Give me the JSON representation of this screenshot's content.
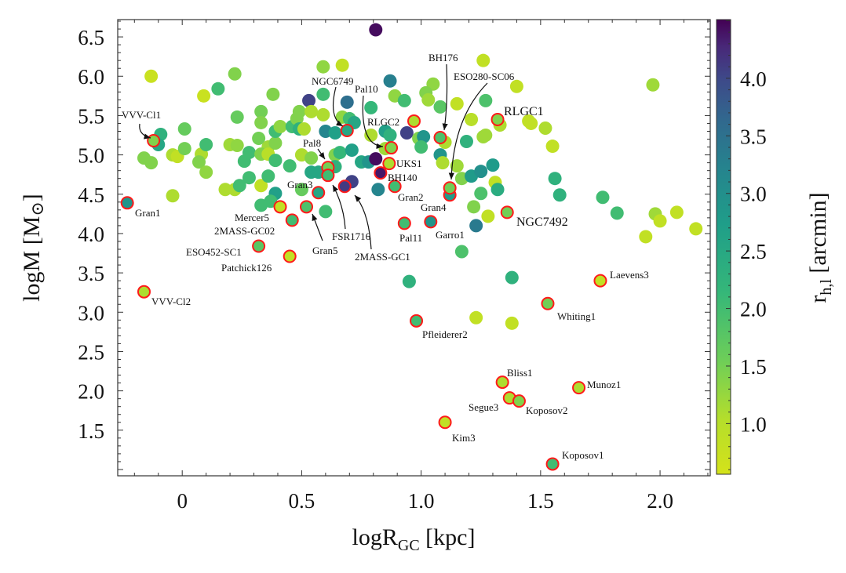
{
  "chart_data": {
    "type": "scatter",
    "title": "",
    "xlabel": "logR",
    "xlabel_sub": "GC",
    "xlabel_unit": " [kpc]",
    "ylabel": "logM [M",
    "ylabel_sym": "⊙",
    "ylabel_end": "]",
    "xlim": [
      -0.27,
      2.21
    ],
    "ylim": [
      0.92,
      6.72
    ],
    "xticks": [
      "0",
      "0.5",
      "1.0",
      "1.5",
      "2.0"
    ],
    "xtick_values": [
      0,
      0.5,
      1.0,
      1.5,
      2.0
    ],
    "yticks": [
      "1.5",
      "2.0",
      "2.5",
      "3.0",
      "3.5",
      "4.0",
      "4.5",
      "5.0",
      "5.5",
      "6.0",
      "6.5"
    ],
    "ytick_values": [
      1.5,
      2.0,
      2.5,
      3.0,
      3.5,
      4.0,
      4.5,
      5.0,
      5.5,
      6.0,
      6.5
    ],
    "colorbar": {
      "label": "r",
      "label_sub": "h,l",
      "label_unit": " [arcmin]",
      "range": [
        0.56,
        4.51
      ],
      "ticks": [
        "1.0",
        "1.5",
        "2.0",
        "2.5",
        "3.0",
        "3.5",
        "4.0"
      ],
      "tick_values": [
        1.0,
        1.5,
        2.0,
        2.5,
        3.0,
        3.5,
        4.0
      ],
      "colormap": "viridis_r"
    },
    "highlight_edge_color": "#ff1a1a",
    "grid": false,
    "labeled_points": [
      {
        "name": "VVV-Cl1",
        "x": -0.12,
        "y": 5.18,
        "rh": 1.3
      },
      {
        "name": "Gran1",
        "x": -0.23,
        "y": 4.39,
        "rh": 2.5
      },
      {
        "name": "VVV-Cl2",
        "x": -0.16,
        "y": 3.26,
        "rh": 1.0
      },
      {
        "name": "Mercer5",
        "x": 0.41,
        "y": 4.34,
        "rh": 0.8
      },
      {
        "name": "2MASS-GC02",
        "x": 0.46,
        "y": 4.17,
        "rh": 1.8
      },
      {
        "name": "Gran5",
        "x": 0.52,
        "y": 4.34,
        "rh": 1.7
      },
      {
        "name": "ESO452-SC1",
        "x": 0.32,
        "y": 3.84,
        "rh": 1.6
      },
      {
        "name": "Patchick126",
        "x": 0.45,
        "y": 3.71,
        "rh": 0.8
      },
      {
        "name": "Gran3",
        "x": 0.57,
        "y": 4.52,
        "rh": 2.2
      },
      {
        "name": "Pal8",
        "x": 0.61,
        "y": 4.84,
        "rh": 1.4
      },
      {
        "name": "FSR1716",
        "x": 0.61,
        "y": 4.74,
        "rh": 1.8
      },
      {
        "name": "2MASS-GC1",
        "x": 0.68,
        "y": 4.6,
        "rh": 3.9
      },
      {
        "name": "NGC6749",
        "x": 0.69,
        "y": 5.31,
        "rh": 2.2
      },
      {
        "name": "Pal10",
        "x": 0.875,
        "y": 5.09,
        "rh": 1.3
      },
      {
        "name": "RLGC2",
        "x": 0.97,
        "y": 5.43,
        "rh": 1.0
      },
      {
        "name": "UKS1",
        "x": 0.866,
        "y": 4.89,
        "rh": 1.0
      },
      {
        "name": "BH140",
        "x": 0.83,
        "y": 4.77,
        "rh": 4.3
      },
      {
        "name": "Gran2",
        "x": 0.89,
        "y": 4.6,
        "rh": 1.8
      },
      {
        "name": "Pal11",
        "x": 0.93,
        "y": 4.13,
        "rh": 1.8
      },
      {
        "name": "Garro1",
        "x": 1.04,
        "y": 4.15,
        "rh": 2.5
      },
      {
        "name": "Gran4",
        "x": 1.12,
        "y": 4.49,
        "rh": 2.4
      },
      {
        "name": "ESO280-SC06",
        "x": 1.12,
        "y": 4.58,
        "rh": 1.4
      },
      {
        "name": "BH176",
        "x": 1.08,
        "y": 5.22,
        "rh": 1.7
      },
      {
        "name": "RLGC1",
        "x": 1.32,
        "y": 5.45,
        "rh": 1.3
      },
      {
        "name": "NGC7492",
        "x": 1.36,
        "y": 4.27,
        "rh": 1.4
      },
      {
        "name": "Laevens3",
        "x": 1.75,
        "y": 3.4,
        "rh": 0.8
      },
      {
        "name": "Whiting1",
        "x": 1.53,
        "y": 3.11,
        "rh": 1.4
      },
      {
        "name": "Pfleiderer2",
        "x": 0.98,
        "y": 2.89,
        "rh": 1.8
      },
      {
        "name": "Bliss1",
        "x": 1.34,
        "y": 2.11,
        "rh": 1.0
      },
      {
        "name": "Munoz1",
        "x": 1.66,
        "y": 2.04,
        "rh": 1.0
      },
      {
        "name": "Segue3",
        "x": 1.37,
        "y": 1.91,
        "rh": 1.0
      },
      {
        "name": "Koposov2",
        "x": 1.41,
        "y": 1.87,
        "rh": 1.3
      },
      {
        "name": "Kim3",
        "x": 1.1,
        "y": 1.6,
        "rh": 0.8
      },
      {
        "name": "Koposov1",
        "x": 1.55,
        "y": 1.07,
        "rh": 1.8
      }
    ],
    "points": [
      [
        0.81,
        6.59,
        4.4
      ],
      [
        -0.13,
        6.0,
        0.7
      ],
      [
        0.22,
        6.03,
        1.3
      ],
      [
        0.15,
        5.84,
        1.8
      ],
      [
        0.09,
        5.75,
        0.7
      ],
      [
        0.38,
        5.77,
        1.3
      ],
      [
        0.59,
        6.12,
        1.2
      ],
      [
        0.67,
        6.14,
        0.8
      ],
      [
        0.87,
        5.94,
        2.9
      ],
      [
        0.53,
        5.69,
        3.8
      ],
      [
        0.59,
        5.77,
        1.8
      ],
      [
        0.69,
        5.67,
        3.2
      ],
      [
        0.79,
        5.6,
        1.9
      ],
      [
        0.89,
        5.75,
        1.2
      ],
      [
        0.93,
        5.69,
        1.8
      ],
      [
        0.23,
        5.48,
        1.5
      ],
      [
        0.33,
        5.55,
        1.4
      ],
      [
        0.33,
        5.41,
        1.3
      ],
      [
        0.01,
        5.33,
        1.5
      ],
      [
        -0.09,
        5.26,
        2.0
      ],
      [
        -0.1,
        5.13,
        2.2
      ],
      [
        -0.16,
        4.96,
        1.3
      ],
      [
        -0.13,
        4.9,
        1.3
      ],
      [
        -0.04,
        5.0,
        1.0
      ],
      [
        -0.02,
        4.98,
        0.8
      ],
      [
        0.01,
        5.08,
        1.4
      ],
      [
        0.08,
        5.01,
        1.0
      ],
      [
        0.07,
        4.91,
        1.3
      ],
      [
        0.1,
        5.13,
        1.8
      ],
      [
        0.1,
        4.78,
        1.2
      ],
      [
        0.2,
        5.13,
        1.1
      ],
      [
        0.23,
        5.12,
        1.2
      ],
      [
        0.26,
        4.92,
        1.8
      ],
      [
        0.28,
        5.03,
        1.8
      ],
      [
        0.28,
        4.71,
        1.8
      ],
      [
        0.18,
        4.56,
        1.0
      ],
      [
        0.22,
        4.56,
        1.0
      ],
      [
        0.24,
        4.61,
        1.8
      ],
      [
        0.33,
        4.61,
        0.8
      ],
      [
        0.36,
        4.73,
        1.8
      ],
      [
        0.32,
        5.21,
        1.4
      ],
      [
        0.36,
        5.1,
        1.1
      ],
      [
        0.33,
        5.01,
        1.3
      ],
      [
        0.36,
        5.01,
        0.9
      ],
      [
        0.39,
        5.15,
        1.3
      ],
      [
        0.39,
        5.3,
        1.8
      ],
      [
        0.41,
        5.36,
        1.2
      ],
      [
        0.39,
        4.93,
        1.8
      ],
      [
        0.45,
        4.86,
        1.8
      ],
      [
        0.46,
        5.36,
        1.8
      ],
      [
        0.48,
        5.46,
        1.3
      ],
      [
        0.49,
        5.55,
        1.3
      ],
      [
        0.49,
        5.33,
        2.0
      ],
      [
        0.51,
        5.33,
        1.0
      ],
      [
        0.54,
        5.55,
        1.0
      ],
      [
        0.59,
        5.51,
        1.0
      ],
      [
        0.6,
        5.3,
        2.8
      ],
      [
        0.64,
        5.28,
        2.3
      ],
      [
        0.67,
        5.48,
        1.2
      ],
      [
        0.7,
        5.46,
        1.8
      ],
      [
        0.72,
        5.41,
        2.2
      ],
      [
        0.5,
        5.0,
        1.0
      ],
      [
        0.54,
        4.96,
        1.3
      ],
      [
        0.54,
        4.78,
        2.2
      ],
      [
        0.57,
        4.78,
        2.2
      ],
      [
        0.64,
        5.0,
        1.3
      ],
      [
        0.66,
        5.03,
        1.9
      ],
      [
        0.64,
        4.85,
        2.0
      ],
      [
        0.71,
        5.06,
        2.3
      ],
      [
        0.75,
        4.91,
        2.2
      ],
      [
        0.78,
        4.91,
        2.5
      ],
      [
        0.81,
        4.95,
        4.4
      ],
      [
        0.79,
        5.25,
        1.0
      ],
      [
        0.85,
        5.3,
        2.3
      ],
      [
        0.87,
        5.25,
        2.0
      ],
      [
        0.85,
        5.08,
        1.1
      ],
      [
        0.94,
        5.28,
        3.8
      ],
      [
        0.82,
        4.56,
        2.8
      ],
      [
        0.71,
        4.66,
        3.8
      ],
      [
        0.5,
        4.56,
        1.5
      ],
      [
        0.39,
        4.51,
        2.3
      ],
      [
        0.37,
        4.41,
        1.8
      ],
      [
        0.33,
        4.36,
        1.8
      ],
      [
        0.6,
        4.28,
        1.8
      ],
      [
        -0.04,
        4.48,
        1.0
      ],
      [
        1.26,
        6.2,
        0.8
      ],
      [
        1.05,
        5.9,
        1.2
      ],
      [
        1.02,
        5.79,
        1.3
      ],
      [
        1.03,
        5.7,
        1.1
      ],
      [
        1.15,
        5.65,
        0.8
      ],
      [
        1.27,
        5.69,
        1.7
      ],
      [
        1.4,
        5.87,
        0.8
      ],
      [
        1.97,
        5.89,
        1.1
      ],
      [
        1.08,
        5.61,
        1.6
      ],
      [
        1.21,
        5.45,
        0.9
      ],
      [
        1.33,
        5.38,
        1.0
      ],
      [
        1.45,
        5.43,
        0.8
      ],
      [
        1.46,
        5.4,
        0.8
      ],
      [
        1.52,
        5.34,
        1.0
      ],
      [
        1.55,
        5.11,
        0.8
      ],
      [
        1.19,
        5.17,
        2.0
      ],
      [
        1.26,
        5.23,
        1.1
      ],
      [
        1.27,
        5.25,
        1.1
      ],
      [
        1.1,
        5.16,
        1.0
      ],
      [
        0.99,
        5.21,
        1.3
      ],
      [
        1.01,
        5.23,
        2.5
      ],
      [
        1.0,
        5.1,
        1.8
      ],
      [
        1.08,
        5.0,
        2.5
      ],
      [
        1.09,
        4.9,
        1.0
      ],
      [
        1.15,
        4.86,
        1.1
      ],
      [
        1.17,
        4.7,
        1.3
      ],
      [
        1.21,
        4.73,
        2.4
      ],
      [
        1.25,
        4.79,
        2.6
      ],
      [
        1.3,
        4.87,
        2.4
      ],
      [
        1.31,
        4.65,
        0.8
      ],
      [
        1.32,
        4.56,
        2.1
      ],
      [
        1.25,
        4.51,
        1.7
      ],
      [
        1.22,
        4.34,
        1.3
      ],
      [
        1.28,
        4.22,
        0.8
      ],
      [
        1.23,
        4.1,
        3.0
      ],
      [
        1.17,
        3.77,
        1.7
      ],
      [
        1.56,
        4.7,
        2.0
      ],
      [
        1.58,
        4.49,
        2.0
      ],
      [
        1.76,
        4.46,
        1.8
      ],
      [
        1.82,
        4.26,
        1.8
      ],
      [
        1.98,
        4.25,
        1.1
      ],
      [
        2.0,
        4.16,
        0.8
      ],
      [
        2.07,
        4.27,
        0.8
      ],
      [
        2.15,
        4.06,
        0.8
      ],
      [
        1.94,
        3.96,
        0.8
      ],
      [
        1.38,
        3.44,
        2.0
      ],
      [
        0.95,
        3.39,
        2.0
      ],
      [
        1.23,
        2.93,
        0.8
      ],
      [
        1.38,
        2.86,
        0.8
      ]
    ]
  }
}
